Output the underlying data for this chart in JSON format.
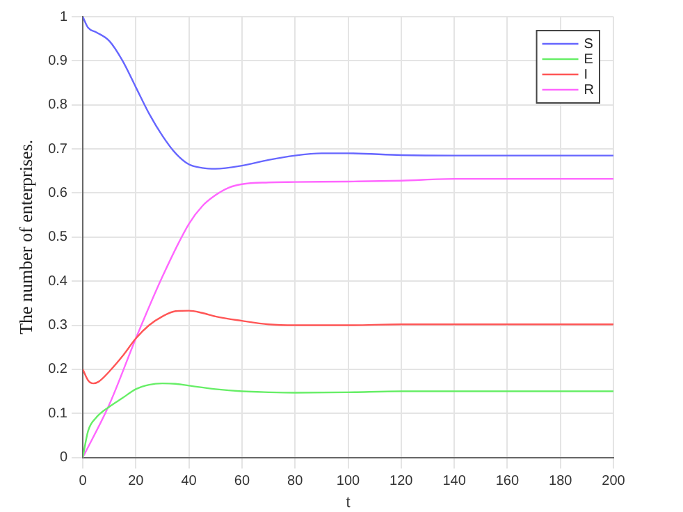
{
  "chart_data": {
    "type": "line",
    "xlabel": "t",
    "ylabel": "The number of enterprises.",
    "xlim": [
      0,
      200
    ],
    "xticks": [
      0,
      20,
      40,
      60,
      80,
      100,
      120,
      140,
      160,
      180,
      200
    ],
    "ylim": [
      0,
      1
    ],
    "yticks": [
      0,
      0.1,
      0.2,
      0.3,
      0.4,
      0.5,
      0.6,
      0.7,
      0.8,
      0.9,
      1
    ],
    "grid": true,
    "legend": "top right",
    "marker": "none",
    "line_style": "solid",
    "series": [
      {
        "name": "S",
        "color": "#6666ff",
        "x": [
          0,
          2,
          5,
          10,
          15,
          20,
          25,
          30,
          35,
          40,
          45,
          50,
          60,
          70,
          80,
          90,
          100,
          120,
          140,
          200
        ],
        "values": [
          1,
          0.975,
          0.965,
          0.945,
          0.9,
          0.84,
          0.78,
          0.73,
          0.69,
          0.665,
          0.657,
          0.655,
          0.662,
          0.675,
          0.685,
          0.69,
          0.69,
          0.686,
          0.685,
          0.685
        ]
      },
      {
        "name": "E",
        "color": "#66ee66",
        "x": [
          0,
          2,
          5,
          10,
          15,
          20,
          25,
          30,
          35,
          40,
          50,
          60,
          70,
          80,
          100,
          120,
          200
        ],
        "values": [
          0,
          0.06,
          0.09,
          0.115,
          0.135,
          0.155,
          0.165,
          0.168,
          0.167,
          0.163,
          0.155,
          0.15,
          0.148,
          0.147,
          0.148,
          0.15,
          0.15
        ]
      },
      {
        "name": "I",
        "color": "#ff5555",
        "x": [
          0,
          2,
          4,
          6,
          10,
          15,
          20,
          25,
          30,
          35,
          40,
          45,
          50,
          60,
          70,
          80,
          100,
          120,
          200
        ],
        "values": [
          0.2,
          0.175,
          0.168,
          0.172,
          0.195,
          0.23,
          0.27,
          0.3,
          0.32,
          0.332,
          0.333,
          0.328,
          0.32,
          0.31,
          0.302,
          0.3,
          0.3,
          0.302,
          0.302
        ]
      },
      {
        "name": "R",
        "color": "#ff66ff",
        "x": [
          0,
          10,
          20,
          30,
          40,
          45,
          50,
          55,
          60,
          70,
          80,
          100,
          120,
          140,
          200
        ],
        "values": [
          0,
          0.12,
          0.27,
          0.41,
          0.53,
          0.57,
          0.595,
          0.612,
          0.62,
          0.624,
          0.625,
          0.626,
          0.628,
          0.632,
          0.632
        ]
      }
    ]
  }
}
